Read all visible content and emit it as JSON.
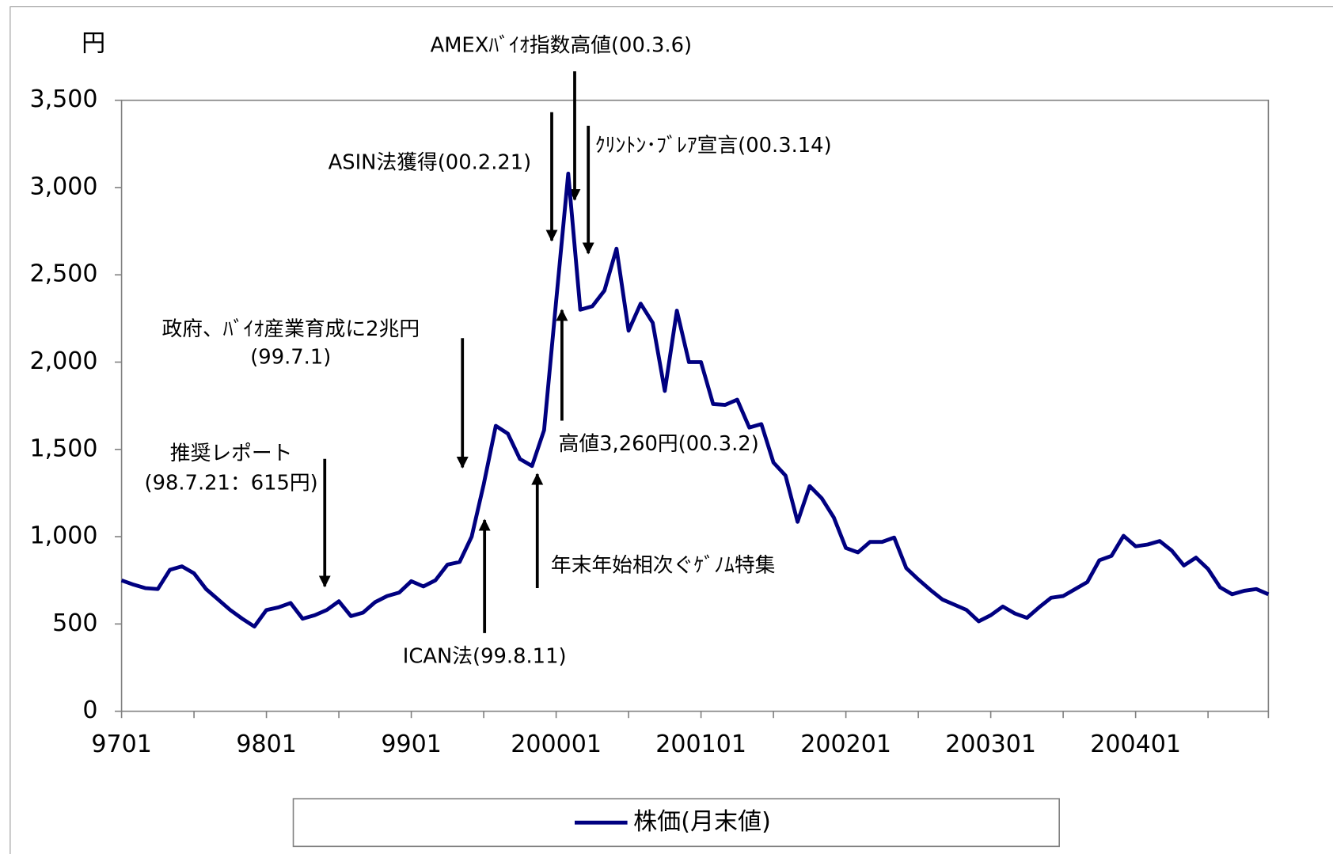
{
  "chart_data": {
    "type": "line",
    "y_unit": "円",
    "categories": [
      "9701",
      null,
      null,
      null,
      null,
      null,
      null,
      null,
      null,
      null,
      null,
      null,
      "9801",
      null,
      null,
      null,
      null,
      null,
      null,
      null,
      null,
      null,
      null,
      null,
      "9901",
      null,
      null,
      null,
      null,
      null,
      null,
      null,
      null,
      null,
      null,
      null,
      "200001",
      null,
      null,
      null,
      null,
      null,
      null,
      null,
      null,
      null,
      null,
      null,
      "200101",
      null,
      null,
      null,
      null,
      null,
      null,
      null,
      null,
      null,
      null,
      null,
      "200201",
      null,
      null,
      null,
      null,
      null,
      null,
      null,
      null,
      null,
      null,
      null,
      "200301",
      null,
      null,
      null,
      null,
      null,
      null,
      null,
      null,
      null,
      null,
      null,
      "200401",
      null,
      null,
      null,
      null,
      null,
      null,
      null,
      null,
      null,
      null,
      null
    ],
    "series": [
      {
        "name": "株価(月末値)",
        "color": "#000080",
        "values": [
          750,
          725,
          705,
          700,
          810,
          830,
          790,
          700,
          640,
          580,
          530,
          485,
          580,
          595,
          620,
          530,
          550,
          580,
          630,
          545,
          565,
          625,
          660,
          680,
          745,
          715,
          750,
          840,
          855,
          1000,
          1300,
          1635,
          1590,
          1445,
          1405,
          1610,
          2350,
          3080,
          2300,
          2320,
          2410,
          2650,
          2180,
          2335,
          2225,
          1835,
          2295,
          2000,
          2000,
          1760,
          1755,
          1785,
          1625,
          1645,
          1425,
          1350,
          1085,
          1290,
          1220,
          1110,
          935,
          910,
          970,
          970,
          995,
          820,
          755,
          695,
          640,
          610,
          580,
          515,
          550,
          600,
          560,
          535,
          595,
          650,
          660,
          700,
          740,
          865,
          890,
          1005,
          945,
          955,
          975,
          920,
          835,
          880,
          815,
          710,
          670,
          690,
          700,
          670
        ]
      }
    ],
    "ylim": [
      0,
      3500
    ],
    "yticks": [
      0,
      500,
      {
        "value": 1000,
        "label": "1,000"
      },
      {
        "value": 1500,
        "label": "1,500"
      },
      {
        "value": 2000,
        "label": "2,000"
      },
      {
        "value": 2500,
        "label": "2,500"
      },
      {
        "value": 3000,
        "label": "3,000"
      },
      {
        "value": 3500,
        "label": "3,500"
      }
    ],
    "legend": "bottom",
    "annotations": [
      "AMEXﾊﾞｲｵ指数高値(00.3.6)",
      "ｸﾘﾝﾄﾝ･ﾌﾞﾚｱ宣言(00.3.14)",
      "ASIN法獲得(00.2.21)",
      "政府、ﾊﾞｲｵ産業育成に2兆円",
      "(99.7.1)",
      "推奨レポート",
      "(98.7.21：615円)",
      "高値3,260円(00.3.2)",
      "年末年始相次ぐｹﾞﾉﾑ特集",
      "ICAN法(99.8.11)"
    ]
  }
}
